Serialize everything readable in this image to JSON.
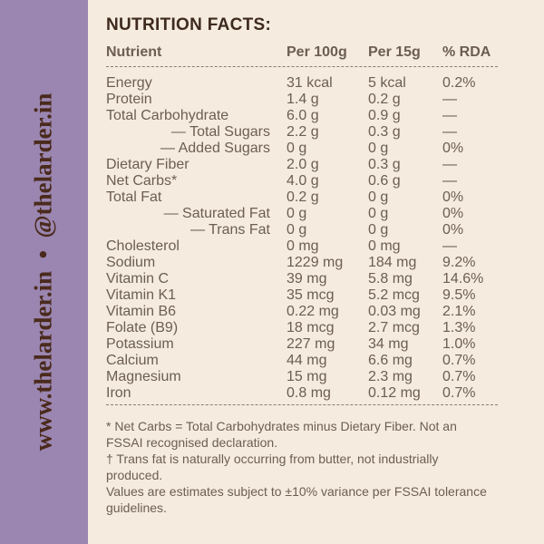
{
  "sidebar": {
    "text": "www.thelarder.in  •  @thelarder.in"
  },
  "title": "NUTRITION FACTS:",
  "table": {
    "header": [
      "Nutrient",
      "Per 100g",
      "Per 15g",
      "% RDA"
    ],
    "rows": [
      [
        "Energy",
        "31 kcal",
        "5 kcal",
        "0.2%"
      ],
      [
        "Protein",
        "1.4 g",
        "0.2 g",
        "—"
      ],
      [
        "Total Carbohydrate",
        "6.0 g",
        "0.9 g",
        "—"
      ],
      [
        "— Total Sugars",
        "2.2 g",
        "0.3 g",
        "—"
      ],
      [
        "— Added Sugars",
        "0 g",
        "0 g",
        "0%"
      ],
      [
        "Dietary Fiber",
        "2.0 g",
        "0.3 g",
        "—"
      ],
      [
        "Net Carbs*",
        "4.0 g",
        "0.6 g",
        "—"
      ],
      [
        "Total Fat",
        "0.2 g",
        "0 g",
        "0%"
      ],
      [
        "— Saturated Fat",
        "0 g",
        "0 g",
        "0%"
      ],
      [
        "— Trans Fat",
        "0 g",
        "0 g",
        "0%"
      ],
      [
        "Cholesterol",
        "0 mg",
        "0 mg",
        "—"
      ],
      [
        "Sodium",
        "1229 mg",
        "184 mg",
        "9.2%"
      ],
      [
        "Vitamin C",
        "39 mg",
        "5.8 mg",
        "14.6%"
      ],
      [
        "Vitamin K1",
        "35 mcg",
        "5.2 mcg",
        "9.5%"
      ],
      [
        "Vitamin B6",
        "0.22 mg",
        "0.03 mg",
        "2.1%"
      ],
      [
        "Folate (B9)",
        "18 mcg",
        "2.7 mcg",
        "1.3%"
      ],
      [
        "Potassium",
        "227 mg",
        "34 mg",
        "1.0%"
      ],
      [
        "Calcium",
        "44 mg",
        "6.6 mg",
        "0.7%"
      ],
      [
        "Magnesium",
        "15 mg",
        "2.3 mg",
        "0.7%"
      ],
      [
        "Iron",
        "0.8 mg",
        "0.12 mg",
        "0.7%"
      ]
    ]
  },
  "footnotes": [
    "* Net Carbs = Total Carbohydrates minus Dietary Fiber. Not an FSSAI recognised declaration.",
    "† Trans fat is naturally occurring from butter, not industrially produced.",
    "Values are estimates subject to ±10% variance per FSSAI tolerance guidelines."
  ]
}
